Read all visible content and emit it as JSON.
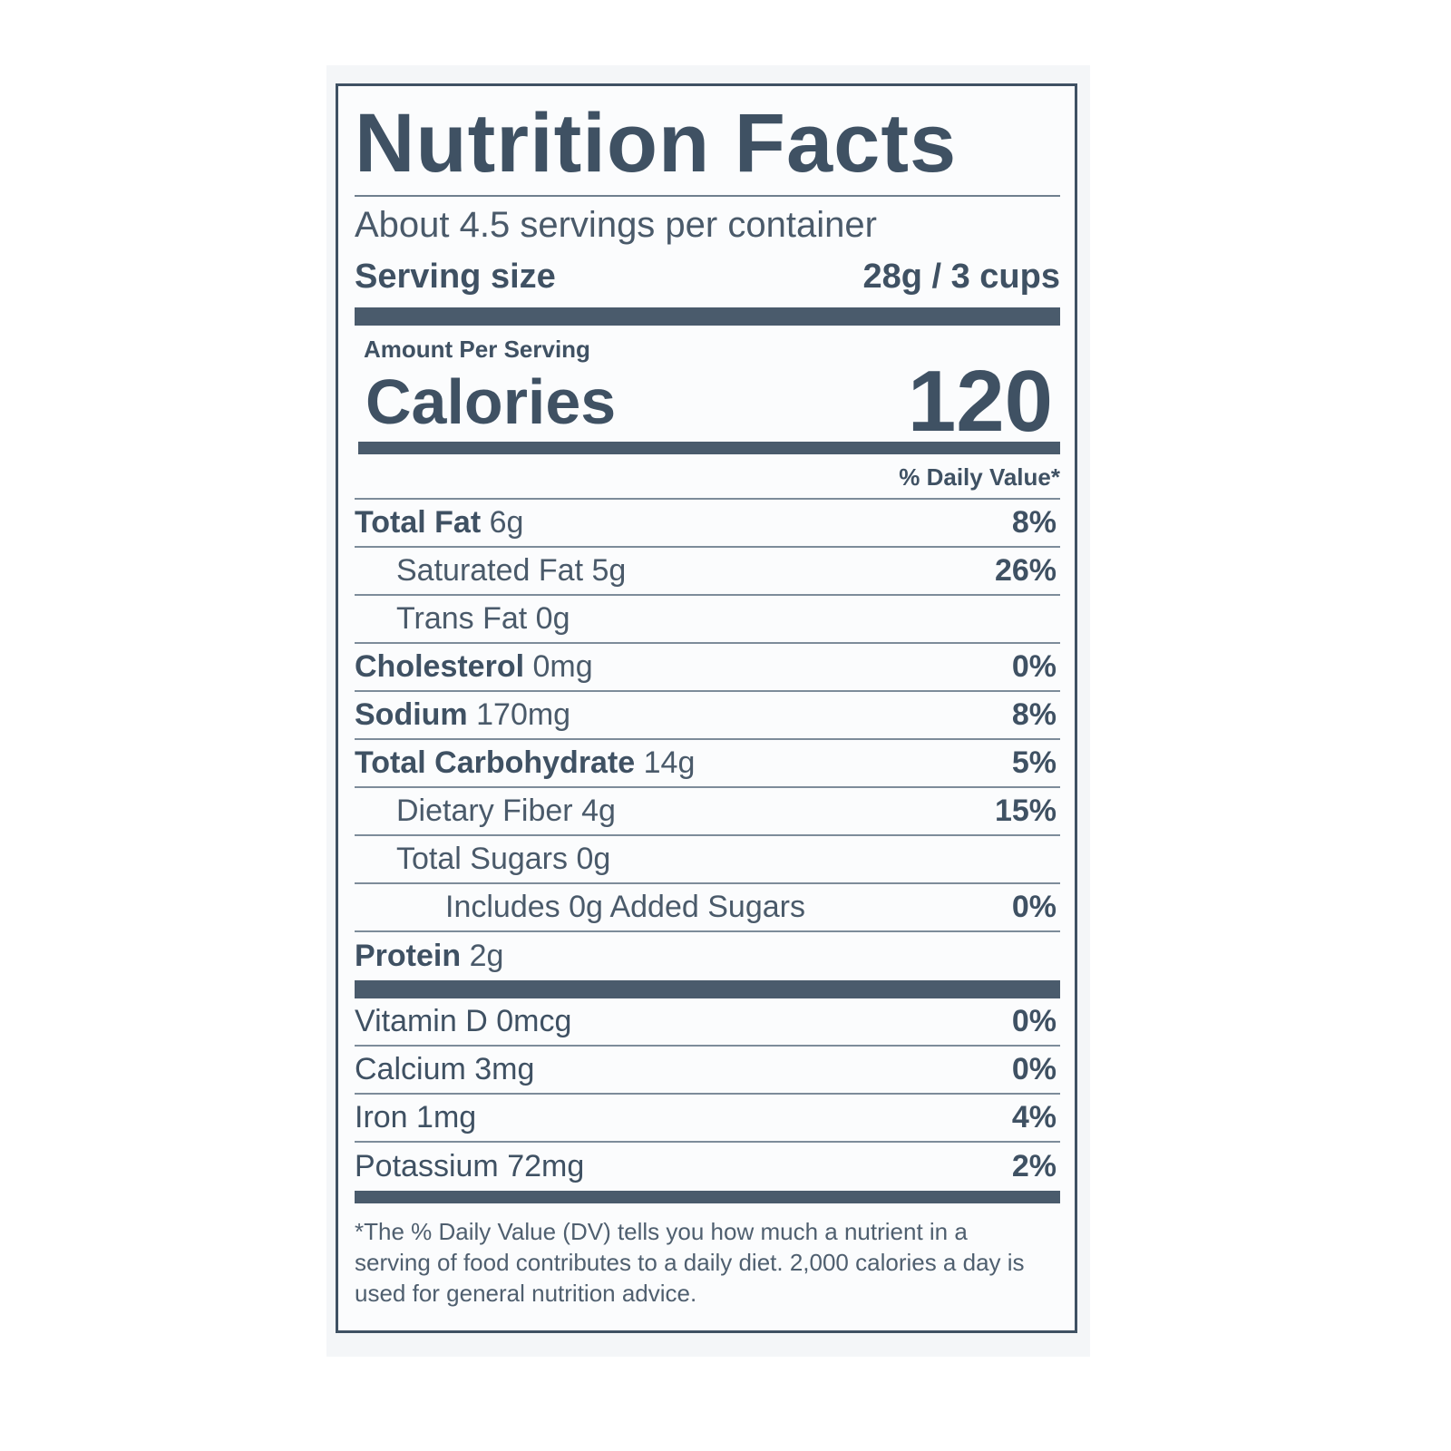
{
  "title": "Nutrition Facts",
  "servings_per_container": "About 4.5 servings per container",
  "serving_size": {
    "label": "Serving size",
    "value": "28g / 3 cups"
  },
  "amount_per_serving": "Amount Per Serving",
  "calories": {
    "label": "Calories",
    "value": "120"
  },
  "daily_value_header": "% Daily Value*",
  "nutrients": [
    {
      "name": "Total Fat",
      "amount": "6g",
      "dv": "8%",
      "bold": true,
      "indent": 0
    },
    {
      "name": "Saturated Fat",
      "amount": "5g",
      "dv": "26%",
      "bold": false,
      "indent": 1
    },
    {
      "name": "Trans Fat",
      "amount": "0g",
      "dv": "",
      "bold": false,
      "indent": 1
    },
    {
      "name": "Cholesterol",
      "amount": "0mg",
      "dv": "0%",
      "bold": true,
      "indent": 0
    },
    {
      "name": "Sodium",
      "amount": "170mg",
      "dv": "8%",
      "bold": true,
      "indent": 0
    },
    {
      "name": "Total Carbohydrate",
      "amount": "14g",
      "dv": "5%",
      "bold": true,
      "indent": 0
    },
    {
      "name": "Dietary Fiber",
      "amount": "4g",
      "dv": "15%",
      "bold": false,
      "indent": 1
    },
    {
      "name": "Total Sugars",
      "amount": "0g",
      "dv": "",
      "bold": false,
      "indent": 1
    },
    {
      "name": "Includes 0g Added Sugars",
      "amount": "",
      "dv": "0%",
      "bold": false,
      "indent": 2
    },
    {
      "name": "Protein",
      "amount": "2g",
      "dv": "",
      "bold": true,
      "indent": 0
    }
  ],
  "vitamins": [
    {
      "name": "Vitamin D",
      "amount": "0mcg",
      "dv": "0%"
    },
    {
      "name": "Calcium",
      "amount": "3mg",
      "dv": "0%"
    },
    {
      "name": "Iron",
      "amount": "1mg",
      "dv": "4%"
    },
    {
      "name": "Potassium",
      "amount": "72mg",
      "dv": "2%"
    }
  ],
  "footnote": "*The % Daily Value (DV) tells you how much a nutrient in a serving of food contributes to a daily diet. 2,000 calories a day is used for general nutrition advice."
}
